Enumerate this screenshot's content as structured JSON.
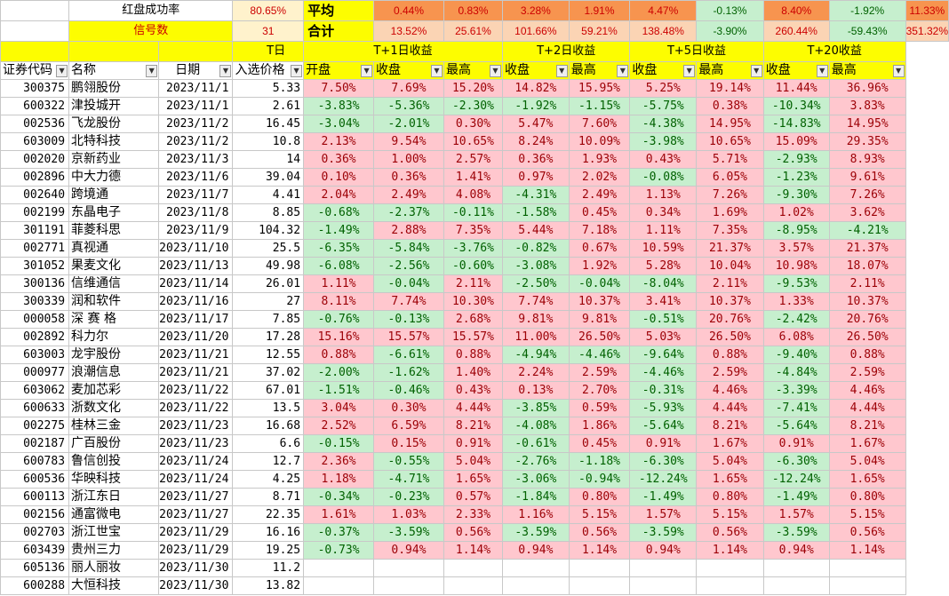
{
  "summary": {
    "success_label": "红盘成功率",
    "success_rate": "80.65%",
    "count_label": "信号数",
    "count": "31",
    "avg_label": "平均",
    "total_label": "合计",
    "avg": [
      "0.44%",
      "0.83%",
      "3.28%",
      "1.91%",
      "4.47%",
      "-0.13%",
      "8.40%",
      "-1.92%",
      "11.33%"
    ],
    "total": [
      "13.52%",
      "25.61%",
      "101.66%",
      "59.21%",
      "138.48%",
      "-3.90%",
      "260.44%",
      "-59.43%",
      "351.32%"
    ]
  },
  "groups": {
    "tday": "T日",
    "t1": "T+1日收益",
    "t2": "T+2日收益",
    "t5": "T+5日收益",
    "t20": "T+20收益"
  },
  "headers": [
    "证券代码",
    "名称",
    "日期",
    "入选价格",
    "开盘",
    "收盘",
    "最高",
    "收盘",
    "最高",
    "收盘",
    "最高",
    "收盘",
    "最高"
  ],
  "rows": [
    [
      "300375",
      "鹏翎股份",
      "2023/11/1",
      "5.33",
      "7.50%",
      "7.69%",
      "15.20%",
      "14.82%",
      "15.95%",
      "5.25%",
      "19.14%",
      "11.44%",
      "36.96%"
    ],
    [
      "600322",
      "津投城开",
      "2023/11/1",
      "2.61",
      "-3.83%",
      "-5.36%",
      "-2.30%",
      "-1.92%",
      "-1.15%",
      "-5.75%",
      "0.38%",
      "-10.34%",
      "3.83%"
    ],
    [
      "002536",
      "飞龙股份",
      "2023/11/2",
      "16.45",
      "-3.04%",
      "-2.01%",
      "0.30%",
      "5.47%",
      "7.60%",
      "-4.38%",
      "14.95%",
      "-14.83%",
      "14.95%"
    ],
    [
      "603009",
      "北特科技",
      "2023/11/2",
      "10.8",
      "2.13%",
      "9.54%",
      "10.65%",
      "8.24%",
      "10.09%",
      "-3.98%",
      "10.65%",
      "15.09%",
      "29.35%"
    ],
    [
      "002020",
      "京新药业",
      "2023/11/3",
      "14",
      "0.36%",
      "1.00%",
      "2.57%",
      "0.36%",
      "1.93%",
      "0.43%",
      "5.71%",
      "-2.93%",
      "8.93%"
    ],
    [
      "002896",
      "中大力德",
      "2023/11/6",
      "39.04",
      "0.10%",
      "0.36%",
      "1.41%",
      "0.97%",
      "2.02%",
      "-0.08%",
      "6.05%",
      "-1.23%",
      "9.61%"
    ],
    [
      "002640",
      "跨境通",
      "2023/11/7",
      "4.41",
      "2.04%",
      "2.49%",
      "4.08%",
      "-4.31%",
      "2.49%",
      "1.13%",
      "7.26%",
      "-9.30%",
      "7.26%"
    ],
    [
      "002199",
      "东晶电子",
      "2023/11/8",
      "8.85",
      "-0.68%",
      "-2.37%",
      "-0.11%",
      "-1.58%",
      "0.45%",
      "0.34%",
      "1.69%",
      "1.02%",
      "3.62%"
    ],
    [
      "301191",
      "菲菱科思",
      "2023/11/9",
      "104.32",
      "-1.49%",
      "2.88%",
      "7.35%",
      "5.44%",
      "7.18%",
      "1.11%",
      "7.35%",
      "-8.95%",
      "-4.21%"
    ],
    [
      "002771",
      "真视通",
      "2023/11/10",
      "25.5",
      "-6.35%",
      "-5.84%",
      "-3.76%",
      "-0.82%",
      "0.67%",
      "10.59%",
      "21.37%",
      "3.57%",
      "21.37%"
    ],
    [
      "301052",
      "果麦文化",
      "2023/11/13",
      "49.98",
      "-6.08%",
      "-2.56%",
      "-0.60%",
      "-3.08%",
      "1.92%",
      "5.28%",
      "10.04%",
      "10.98%",
      "18.07%"
    ],
    [
      "300136",
      "信维通信",
      "2023/11/14",
      "26.01",
      "1.11%",
      "-0.04%",
      "2.11%",
      "-2.50%",
      "-0.04%",
      "-8.04%",
      "2.11%",
      "-9.53%",
      "2.11%"
    ],
    [
      "300339",
      "润和软件",
      "2023/11/16",
      "27",
      "8.11%",
      "7.74%",
      "10.30%",
      "7.74%",
      "10.37%",
      "3.41%",
      "10.37%",
      "1.33%",
      "10.37%"
    ],
    [
      "000058",
      "深 赛 格",
      "2023/11/17",
      "7.85",
      "-0.76%",
      "-0.13%",
      "2.68%",
      "9.81%",
      "9.81%",
      "-0.51%",
      "20.76%",
      "-2.42%",
      "20.76%"
    ],
    [
      "002892",
      "科力尔",
      "2023/11/20",
      "17.28",
      "15.16%",
      "15.57%",
      "15.57%",
      "11.00%",
      "26.50%",
      "5.03%",
      "26.50%",
      "6.08%",
      "26.50%"
    ],
    [
      "603003",
      "龙宇股份",
      "2023/11/21",
      "12.55",
      "0.88%",
      "-6.61%",
      "0.88%",
      "-4.94%",
      "-4.46%",
      "-9.64%",
      "0.88%",
      "-9.40%",
      "0.88%"
    ],
    [
      "000977",
      "浪潮信息",
      "2023/11/21",
      "37.02",
      "-2.00%",
      "-1.62%",
      "1.40%",
      "2.24%",
      "2.59%",
      "-4.46%",
      "2.59%",
      "-4.84%",
      "2.59%"
    ],
    [
      "603062",
      "麦加芯彩",
      "2023/11/22",
      "67.01",
      "-1.51%",
      "-0.46%",
      "0.43%",
      "0.13%",
      "2.70%",
      "-0.31%",
      "4.46%",
      "-3.39%",
      "4.46%"
    ],
    [
      "600633",
      "浙数文化",
      "2023/11/22",
      "13.5",
      "3.04%",
      "0.30%",
      "4.44%",
      "-3.85%",
      "0.59%",
      "-5.93%",
      "4.44%",
      "-7.41%",
      "4.44%"
    ],
    [
      "002275",
      "桂林三金",
      "2023/11/23",
      "16.68",
      "2.52%",
      "6.59%",
      "8.21%",
      "-4.08%",
      "1.86%",
      "-5.64%",
      "8.21%",
      "-5.64%",
      "8.21%"
    ],
    [
      "002187",
      "广百股份",
      "2023/11/23",
      "6.6",
      "-0.15%",
      "0.15%",
      "0.91%",
      "-0.61%",
      "0.45%",
      "0.91%",
      "1.67%",
      "0.91%",
      "1.67%"
    ],
    [
      "600783",
      "鲁信创投",
      "2023/11/24",
      "12.7",
      "2.36%",
      "-0.55%",
      "5.04%",
      "-2.76%",
      "-1.18%",
      "-6.30%",
      "5.04%",
      "-6.30%",
      "5.04%"
    ],
    [
      "600536",
      "华映科技",
      "2023/11/24",
      "4.25",
      "1.18%",
      "-4.71%",
      "1.65%",
      "-3.06%",
      "-0.94%",
      "-12.24%",
      "1.65%",
      "-12.24%",
      "1.65%"
    ],
    [
      "600113",
      "浙江东日",
      "2023/11/27",
      "8.71",
      "-0.34%",
      "-0.23%",
      "0.57%",
      "-1.84%",
      "0.80%",
      "-1.49%",
      "0.80%",
      "-1.49%",
      "0.80%"
    ],
    [
      "002156",
      "通富微电",
      "2023/11/27",
      "22.35",
      "1.61%",
      "1.03%",
      "2.33%",
      "1.16%",
      "5.15%",
      "1.57%",
      "5.15%",
      "1.57%",
      "5.15%"
    ],
    [
      "002703",
      "浙江世宝",
      "2023/11/29",
      "16.16",
      "-0.37%",
      "-3.59%",
      "0.56%",
      "-3.59%",
      "0.56%",
      "-3.59%",
      "0.56%",
      "-3.59%",
      "0.56%"
    ],
    [
      "603439",
      "贵州三力",
      "2023/11/29",
      "19.25",
      "-0.73%",
      "0.94%",
      "1.14%",
      "0.94%",
      "1.14%",
      "0.94%",
      "1.14%",
      "0.94%",
      "1.14%"
    ],
    [
      "605136",
      "丽人丽妆",
      "2023/11/30",
      "11.2",
      "",
      "",
      "",
      "",
      "",
      "",
      "",
      "",
      ""
    ],
    [
      "600288",
      "大恒科技",
      "2023/11/30",
      "13.82",
      "",
      "",
      "",
      "",
      "",
      "",
      "",
      "",
      ""
    ]
  ],
  "colors": {
    "positive_bg": "#ffc7ce",
    "positive_text": "#9c0006",
    "negative_bg": "#c6efce",
    "negative_text": "#006100",
    "header_yellow": "#fdfd00",
    "summary_orange": "#f7944f"
  },
  "icons": {
    "filter": "dropdown-arrow-icon"
  }
}
